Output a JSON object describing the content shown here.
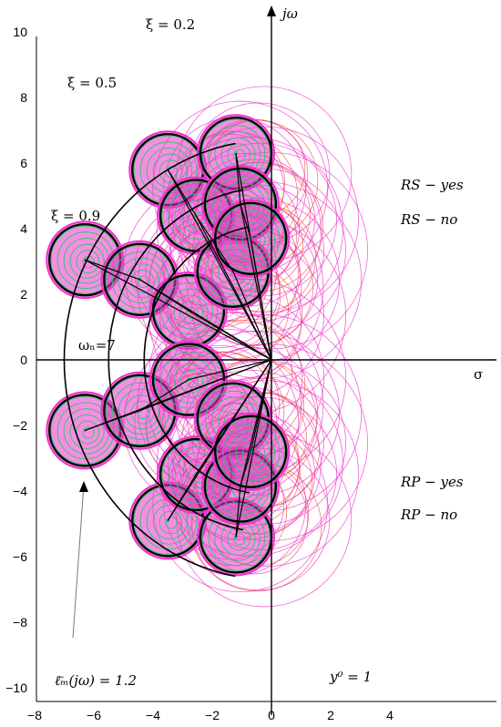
{
  "chart_data": {
    "type": "scatter",
    "xlabel": "σ",
    "ylabel": "jω",
    "xlim": [
      -8,
      6
    ],
    "ylim": [
      -10,
      10.5
    ],
    "xticks": [
      "−8",
      "−6",
      "−4",
      "−2",
      "0",
      "2",
      "4"
    ],
    "yticks": [
      "−10",
      "−8",
      "−6",
      "−4",
      "−2",
      "0",
      "2",
      "4",
      "6",
      "8",
      "10"
    ],
    "xtick_values": [
      -8,
      -6,
      -4,
      -2,
      0,
      2,
      4
    ],
    "ytick_values": [
      -10,
      -8,
      -6,
      -4,
      -2,
      0,
      2,
      4,
      6,
      8,
      10
    ],
    "zeta_labels": [
      "ξ = 0.2",
      "ξ = 0.5",
      "ξ = 0.9"
    ],
    "omega_label": "ωₙ=7",
    "radius_label": "ℓ̄ₘ(jω) = 1.2",
    "y0_label": "y⁰ = 1",
    "legend": [
      {
        "text": "RS − yes",
        "color": "#22cc66"
      },
      {
        "text": "RS − no",
        "color": "#ee3322"
      },
      {
        "text": "RP − yes",
        "color": "#1a8fd6"
      },
      {
        "text": "RP − no",
        "color": "#ee33cc"
      }
    ],
    "nominal_poles": [
      {
        "x": -6.3,
        "y": 3.05
      },
      {
        "x": -4.45,
        "y": 2.45
      },
      {
        "x": -2.8,
        "y": 1.5
      },
      {
        "x": -3.5,
        "y": 5.8
      },
      {
        "x": -2.55,
        "y": 4.4
      },
      {
        "x": -1.3,
        "y": 2.7
      },
      {
        "x": -1.2,
        "y": 6.3
      },
      {
        "x": -1.05,
        "y": 4.75
      },
      {
        "x": -0.7,
        "y": 3.7
      },
      {
        "x": -6.3,
        "y": -2.15
      },
      {
        "x": -4.45,
        "y": -1.55
      },
      {
        "x": -2.8,
        "y": -0.6
      },
      {
        "x": -3.5,
        "y": -4.9
      },
      {
        "x": -2.55,
        "y": -3.5
      },
      {
        "x": -1.3,
        "y": -1.8
      },
      {
        "x": -1.2,
        "y": -5.4
      },
      {
        "x": -1.05,
        "y": -3.85
      },
      {
        "x": -0.7,
        "y": -2.8
      }
    ],
    "radii_arcs": [
      4.3,
      5.5,
      7.0
    ],
    "pole_disc_radius": 1.2,
    "colors": {
      "green": "#22cc66",
      "red": "#ee3322",
      "magenta": "#ee33cc",
      "blue": "#1a8fd6",
      "black": "#000000"
    }
  }
}
